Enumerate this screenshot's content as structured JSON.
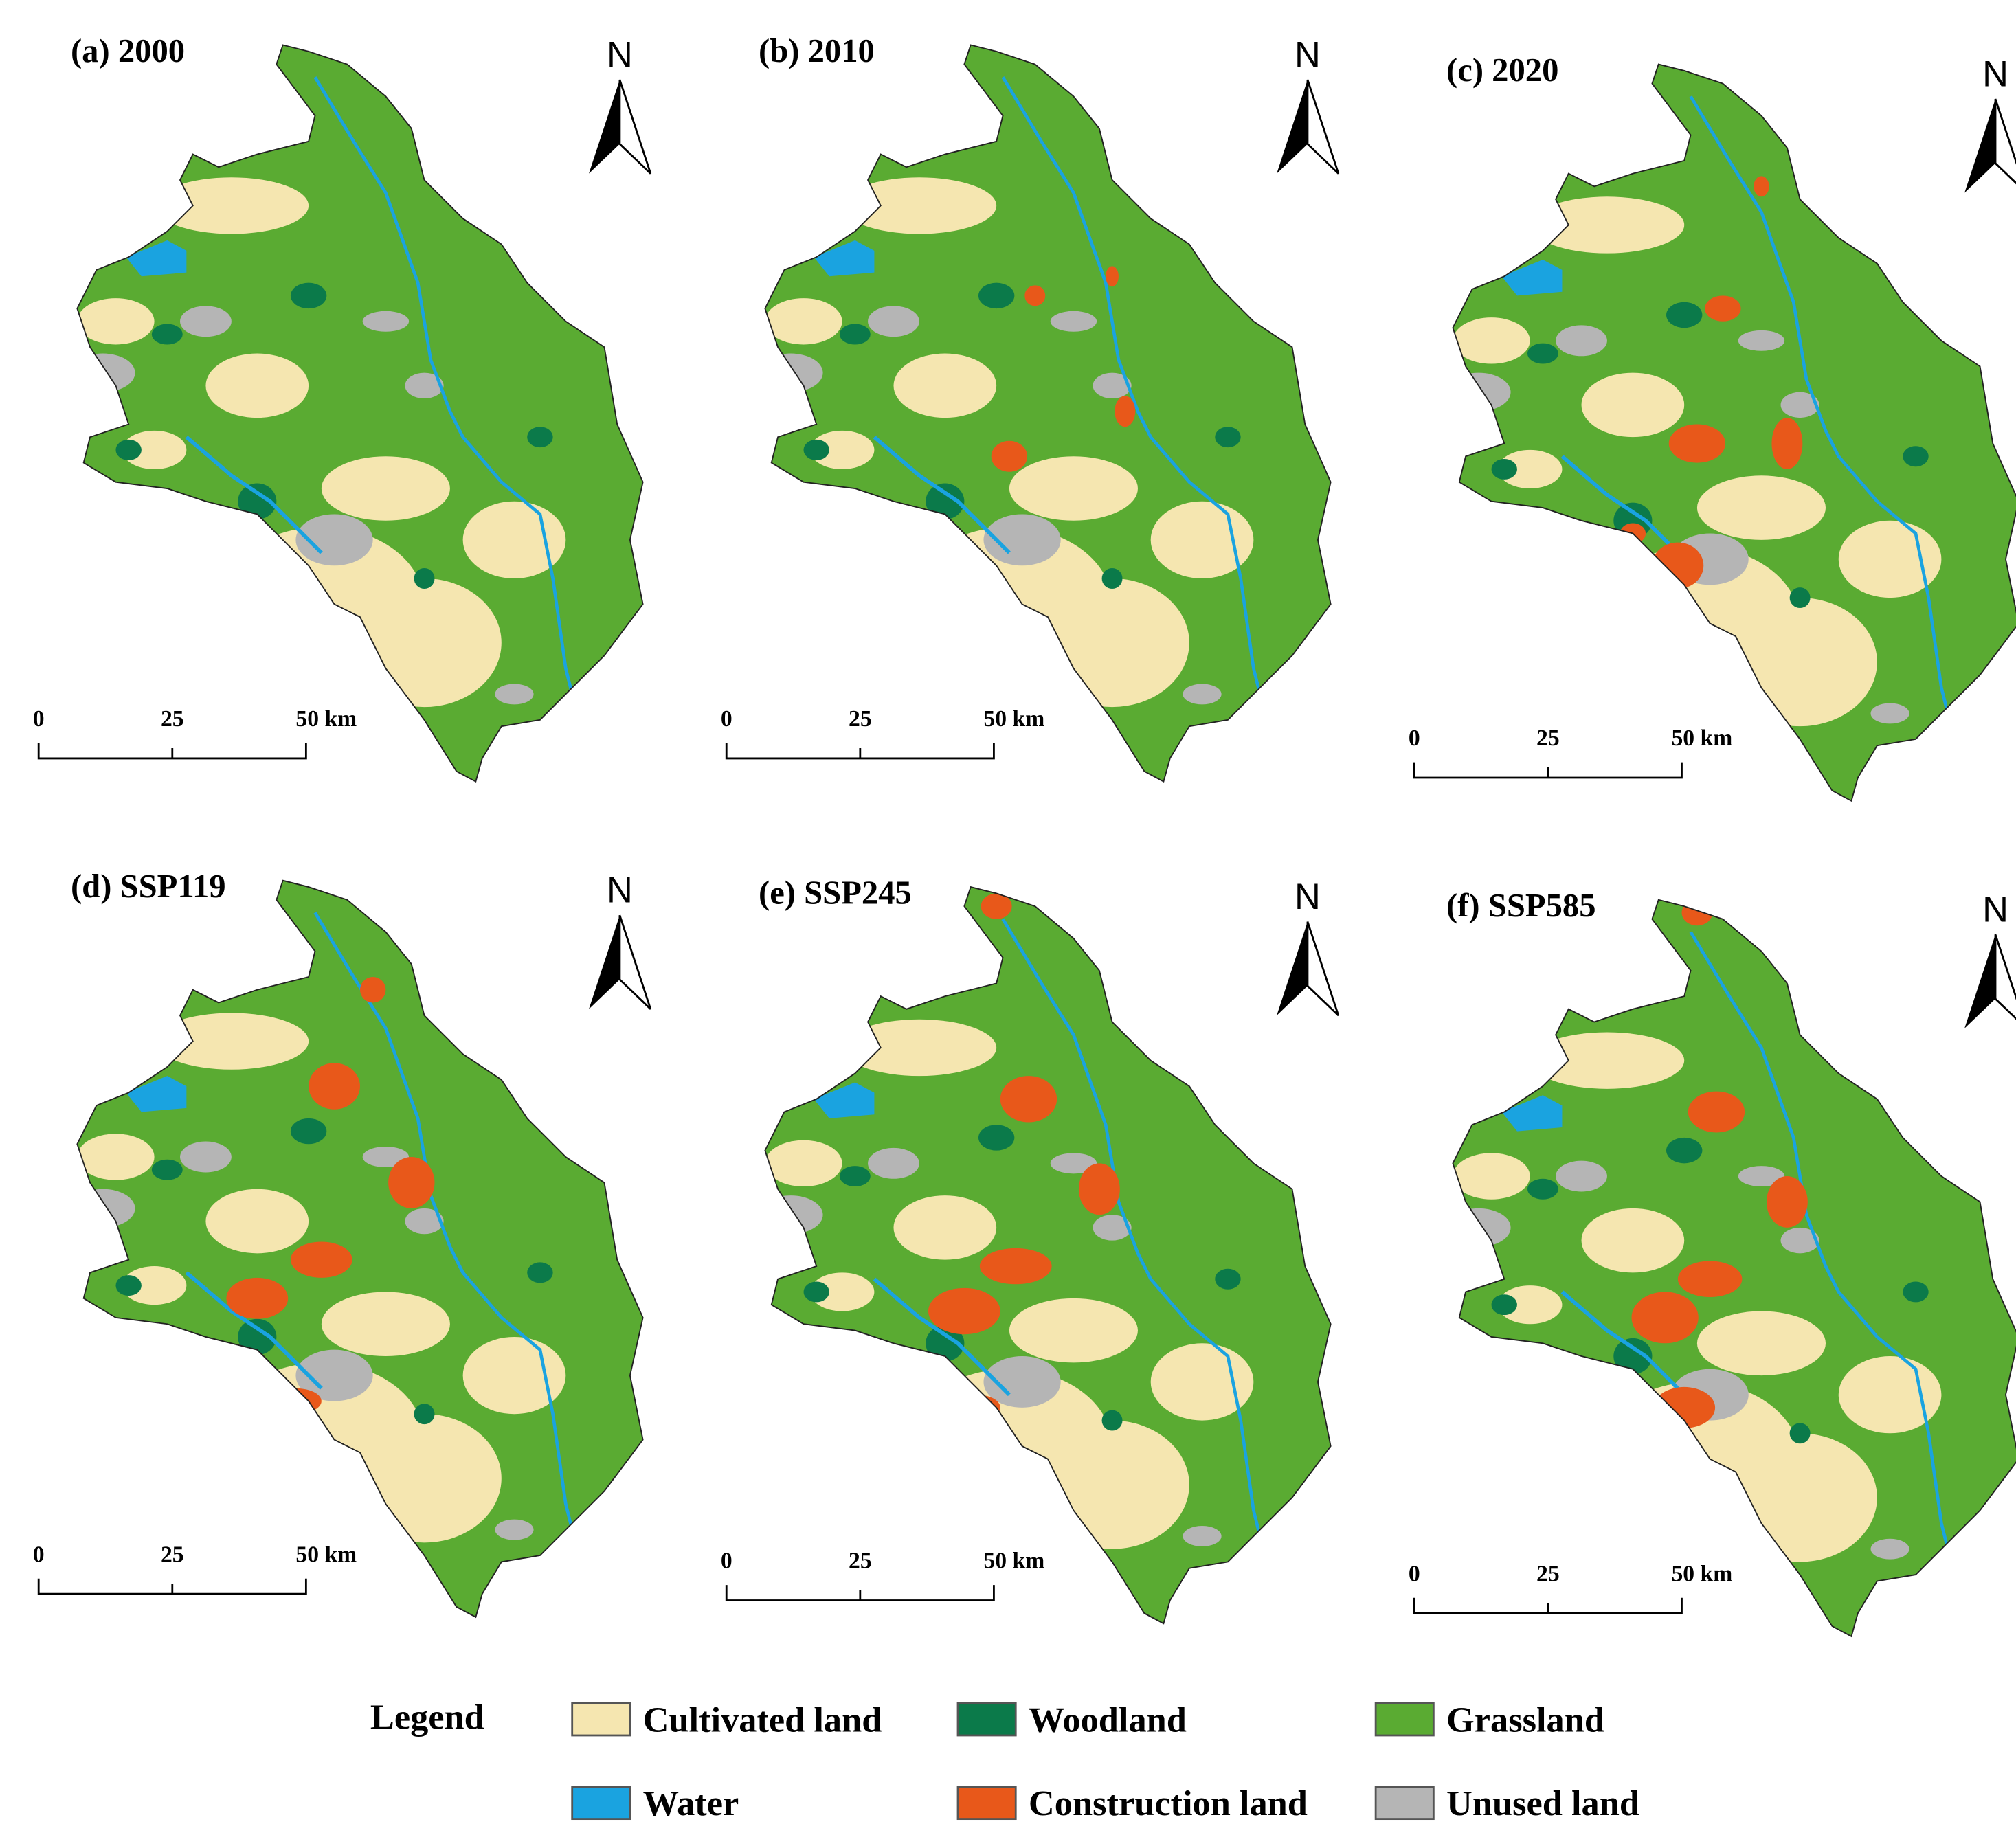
{
  "panels": [
    {
      "title": "(a) 2000",
      "north": "N",
      "scale": [
        "0",
        "25",
        "50 km"
      ]
    },
    {
      "title": "(b) 2010",
      "north": "N",
      "scale": [
        "0",
        "25",
        "50 km"
      ]
    },
    {
      "title": "(c) 2020",
      "north": "N",
      "scale": [
        "0",
        "25",
        "50 km"
      ]
    },
    {
      "title": "(d) SSP119",
      "north": "N",
      "scale": [
        "0",
        "25",
        "50 km"
      ]
    },
    {
      "title": "(e) SSP245",
      "north": "N",
      "scale": [
        "0",
        "25",
        "50 km"
      ]
    },
    {
      "title": "(f) SSP585",
      "north": "N",
      "scale": [
        "0",
        "25",
        "50 km"
      ]
    }
  ],
  "legend": {
    "title": "Legend",
    "items": [
      {
        "label": "Cultivated land",
        "color": "#f5e6b0"
      },
      {
        "label": "Woodland",
        "color": "#0b7a4a"
      },
      {
        "label": "Grassland",
        "color": "#5aab32"
      },
      {
        "label": "Water",
        "color": "#1aa3e0"
      },
      {
        "label": "Construction land",
        "color": "#e8581a"
      },
      {
        "label": "Unused land",
        "color": "#b5b5b5"
      }
    ]
  }
}
